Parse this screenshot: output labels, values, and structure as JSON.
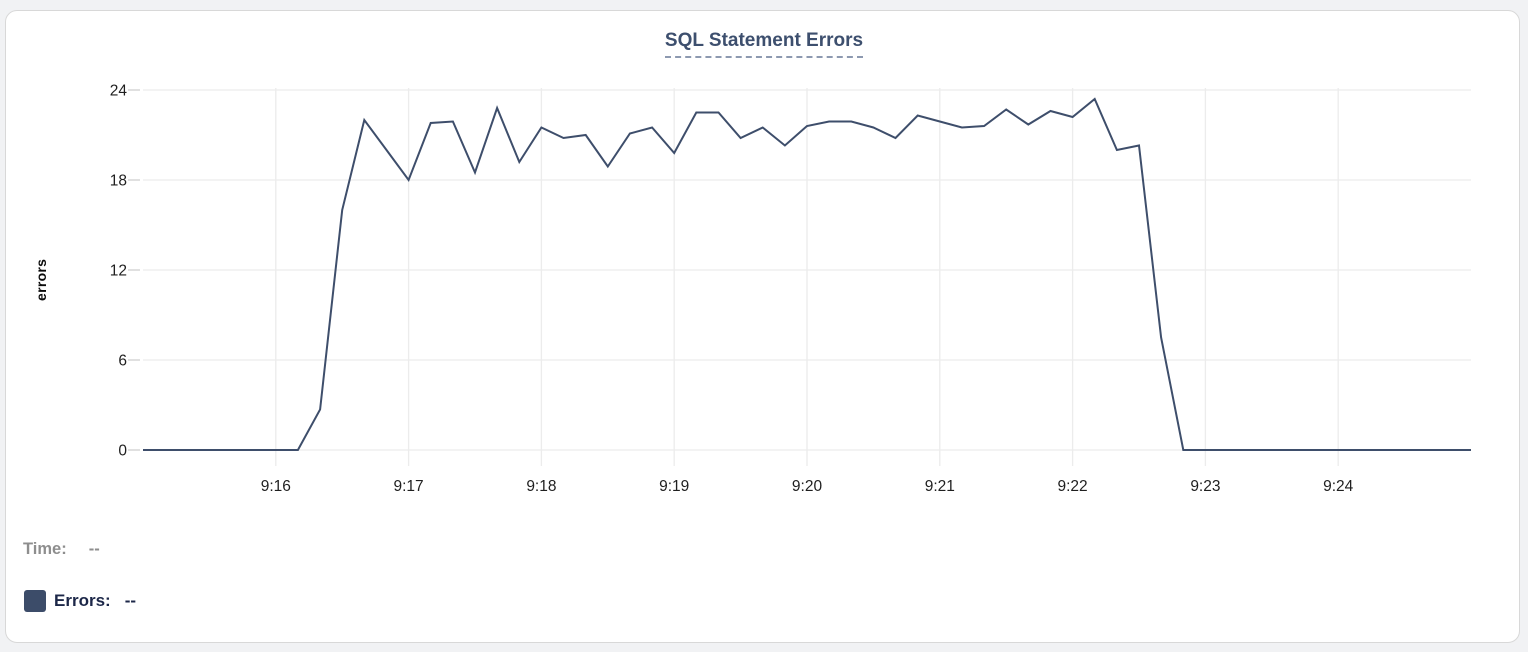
{
  "page": {
    "background": "#f1f2f4",
    "card_background": "#ffffff",
    "card_border_color": "#d8d8d8"
  },
  "chart": {
    "title": "SQL Statement Errors",
    "title_color": "#3d4f6e",
    "title_underline_color": "#8d99b0",
    "y_axis_label": "errors",
    "line_color": "#3e4e6b",
    "grid_color": "#ececec",
    "axis_tick_dash_color": "#d8d8d8",
    "tick_text_color": "#1f1f1f"
  },
  "legend": {
    "time_label": "Time:",
    "time_value": "--",
    "errors_label": "Errors:",
    "errors_value": "--",
    "time_color": "#8e8e8e",
    "errors_color": "#1c2748",
    "swatch_color": "#3c4c69"
  },
  "chart_data": {
    "type": "line",
    "title": "SQL Statement Errors",
    "xlabel": "",
    "ylabel": "errors",
    "ylim": [
      0,
      24
    ],
    "yticks": [
      0,
      6,
      12,
      18,
      24
    ],
    "xticks": [
      "9:16",
      "9:17",
      "9:18",
      "9:19",
      "9:20",
      "9:21",
      "9:22",
      "9:23",
      "9:24"
    ],
    "x_range": [
      "9:15:00",
      "9:25:00"
    ],
    "grid": true,
    "legend_position": "bottom-left",
    "series": [
      {
        "name": "Errors",
        "points": [
          [
            "9:15:00",
            0
          ],
          [
            "9:15:10",
            0
          ],
          [
            "9:15:20",
            0
          ],
          [
            "9:15:30",
            0
          ],
          [
            "9:15:40",
            0
          ],
          [
            "9:15:50",
            0
          ],
          [
            "9:16:00",
            0
          ],
          [
            "9:16:10",
            0
          ],
          [
            "9:16:20",
            2.7
          ],
          [
            "9:16:30",
            16
          ],
          [
            "9:16:40",
            22
          ],
          [
            "9:16:50",
            20
          ],
          [
            "9:17:00",
            18
          ],
          [
            "9:17:10",
            21.8
          ],
          [
            "9:17:20",
            21.9
          ],
          [
            "9:17:30",
            18.5
          ],
          [
            "9:17:40",
            22.8
          ],
          [
            "9:17:50",
            19.2
          ],
          [
            "9:18:00",
            21.5
          ],
          [
            "9:18:10",
            20.8
          ],
          [
            "9:18:20",
            21
          ],
          [
            "9:18:30",
            18.9
          ],
          [
            "9:18:40",
            21.1
          ],
          [
            "9:18:50",
            21.5
          ],
          [
            "9:19:00",
            19.8
          ],
          [
            "9:19:10",
            22.5
          ],
          [
            "9:19:20",
            22.5
          ],
          [
            "9:19:30",
            20.8
          ],
          [
            "9:19:40",
            21.5
          ],
          [
            "9:19:50",
            20.3
          ],
          [
            "9:20:00",
            21.6
          ],
          [
            "9:20:10",
            21.9
          ],
          [
            "9:20:20",
            21.9
          ],
          [
            "9:20:30",
            21.5
          ],
          [
            "9:20:40",
            20.8
          ],
          [
            "9:20:50",
            22.3
          ],
          [
            "9:21:00",
            21.9
          ],
          [
            "9:21:10",
            21.5
          ],
          [
            "9:21:20",
            21.6
          ],
          [
            "9:21:30",
            22.7
          ],
          [
            "9:21:40",
            21.7
          ],
          [
            "9:21:50",
            22.6
          ],
          [
            "9:22:00",
            22.2
          ],
          [
            "9:22:10",
            23.4
          ],
          [
            "9:22:20",
            20
          ],
          [
            "9:22:30",
            20.3
          ],
          [
            "9:22:40",
            7.5
          ],
          [
            "9:22:50",
            0
          ],
          [
            "9:23:00",
            0
          ],
          [
            "9:23:10",
            0
          ],
          [
            "9:23:20",
            0
          ],
          [
            "9:23:30",
            0
          ],
          [
            "9:23:40",
            0
          ],
          [
            "9:23:50",
            0
          ],
          [
            "9:24:00",
            0
          ],
          [
            "9:24:10",
            0
          ],
          [
            "9:24:20",
            0
          ],
          [
            "9:24:30",
            0
          ],
          [
            "9:24:40",
            0
          ],
          [
            "9:24:50",
            0
          ],
          [
            "9:25:00",
            0
          ]
        ]
      }
    ]
  }
}
